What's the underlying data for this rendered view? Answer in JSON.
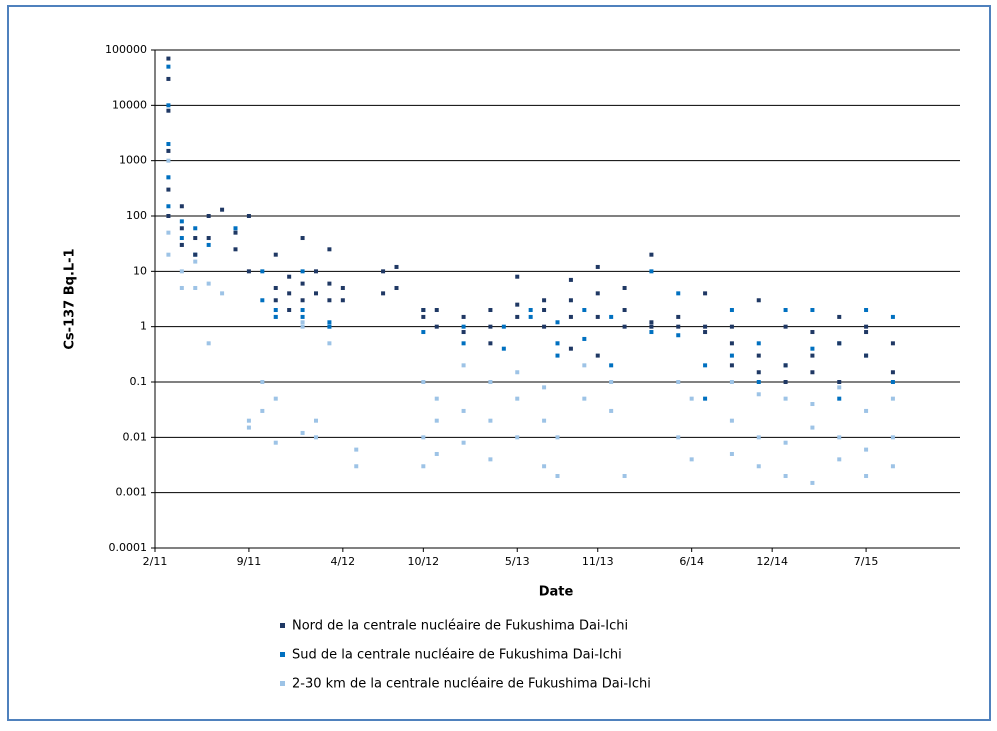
{
  "chart_data": {
    "type": "scatter",
    "xlabel": "Date",
    "ylabel": "Cs-137 Bq.L-1",
    "yscale": "log",
    "grid": true,
    "legend": "bottom",
    "xlim": [
      "2011-02",
      "2016-02"
    ],
    "xticks": [
      {
        "value": "2011-02",
        "label": "2/11"
      },
      {
        "value": "2011-09",
        "label": "9/11"
      },
      {
        "value": "2012-04",
        "label": "4/12"
      },
      {
        "value": "2012-10",
        "label": "10/12"
      },
      {
        "value": "2013-05",
        "label": "5/13"
      },
      {
        "value": "2013-11",
        "label": "11/13"
      },
      {
        "value": "2014-06",
        "label": "6/14"
      },
      {
        "value": "2014-12",
        "label": "12/14"
      },
      {
        "value": "2015-07",
        "label": "7/15"
      }
    ],
    "ylim": [
      0.0001,
      100000
    ],
    "yticks": [
      0.0001,
      0.001,
      0.01,
      0.1,
      1,
      10,
      100,
      1000,
      10000,
      100000
    ],
    "series": [
      {
        "name": "Nord de la centrale nucléaire de Fukushima Dai-Ichi",
        "color": "#1f3864",
        "x": [
          "2011-03",
          "2011-03",
          "2011-03",
          "2011-03",
          "2011-03",
          "2011-03",
          "2011-04",
          "2011-04",
          "2011-04",
          "2011-05",
          "2011-05",
          "2011-06",
          "2011-06",
          "2011-07",
          "2011-08",
          "2011-08",
          "2011-09",
          "2011-09",
          "2011-11",
          "2011-11",
          "2011-11",
          "2011-12",
          "2011-12",
          "2011-12",
          "2012-01",
          "2012-01",
          "2012-01",
          "2012-02",
          "2012-02",
          "2012-03",
          "2012-03",
          "2012-03",
          "2012-04",
          "2012-04",
          "2012-07",
          "2012-07",
          "2012-08",
          "2012-08",
          "2012-10",
          "2012-10",
          "2012-11",
          "2012-11",
          "2013-01",
          "2013-01",
          "2013-03",
          "2013-03",
          "2013-03",
          "2013-05",
          "2013-05",
          "2013-05",
          "2013-07",
          "2013-07",
          "2013-07",
          "2013-09",
          "2013-09",
          "2013-09",
          "2013-09",
          "2013-11",
          "2013-11",
          "2013-11",
          "2013-11",
          "2014-01",
          "2014-01",
          "2014-01",
          "2014-03",
          "2014-03",
          "2014-03",
          "2014-05",
          "2014-05",
          "2014-07",
          "2014-07",
          "2014-07",
          "2014-09",
          "2014-09",
          "2014-09",
          "2014-11",
          "2014-11",
          "2014-11",
          "2015-01",
          "2015-01",
          "2015-01",
          "2015-03",
          "2015-03",
          "2015-03",
          "2015-05",
          "2015-05",
          "2015-05",
          "2015-07",
          "2015-07",
          "2015-07",
          "2015-09",
          "2015-09"
        ],
        "values": [
          70000,
          30000,
          8000,
          1500,
          300,
          100,
          150,
          60,
          30,
          40,
          20,
          40,
          100,
          130,
          50,
          25,
          10,
          100,
          5,
          20,
          3,
          8,
          4,
          2,
          6,
          3,
          40,
          4,
          10,
          25,
          3,
          6,
          5,
          3,
          10,
          4,
          12,
          5,
          2,
          1.5,
          1,
          2,
          1.5,
          0.8,
          2,
          1,
          0.5,
          2.5,
          8,
          1.5,
          3,
          2,
          1,
          3,
          7,
          1.5,
          0.4,
          4,
          12,
          1.5,
          0.3,
          2,
          5,
          1,
          20,
          1,
          1.2,
          1,
          1.5,
          1,
          0.8,
          4,
          0.5,
          0.2,
          1,
          0.3,
          0.15,
          3,
          0.2,
          0.1,
          1,
          0.15,
          0.3,
          0.8,
          0.5,
          0.1,
          1.5,
          0.3,
          1,
          0.8,
          0.5,
          0.15
        ]
      },
      {
        "name": "Sud de la centrale nucléaire de Fukushima Dai-Ichi",
        "color": "#0070c0",
        "x": [
          "2011-03",
          "2011-03",
          "2011-03",
          "2011-03",
          "2011-03",
          "2011-04",
          "2011-04",
          "2011-05",
          "2011-05",
          "2011-06",
          "2011-08",
          "2011-10",
          "2011-10",
          "2011-11",
          "2011-11",
          "2012-01",
          "2012-01",
          "2012-01",
          "2012-03",
          "2012-03",
          "2012-10",
          "2012-10",
          "2013-01",
          "2013-01",
          "2013-04",
          "2013-04",
          "2013-06",
          "2013-06",
          "2013-08",
          "2013-08",
          "2013-08",
          "2013-10",
          "2013-10",
          "2013-12",
          "2013-12",
          "2014-03",
          "2014-03",
          "2014-05",
          "2014-05",
          "2014-07",
          "2014-07",
          "2014-09",
          "2014-09",
          "2014-11",
          "2014-11",
          "2015-01",
          "2015-01",
          "2015-03",
          "2015-03",
          "2015-05",
          "2015-05",
          "2015-07",
          "2015-07",
          "2015-09",
          "2015-09"
        ],
        "values": [
          50000,
          10000,
          2000,
          500,
          150,
          80,
          40,
          20,
          60,
          30,
          60,
          3,
          10,
          2,
          1.5,
          1.5,
          2,
          10,
          1.2,
          1,
          0.8,
          2,
          0.5,
          1,
          1,
          0.4,
          1.5,
          2,
          0.5,
          1.2,
          0.3,
          2,
          0.6,
          1.5,
          0.2,
          10,
          0.8,
          4,
          0.7,
          0.05,
          0.2,
          2,
          0.3,
          0.5,
          0.1,
          2,
          0.2,
          2,
          0.4,
          0.5,
          0.05,
          2,
          0.3,
          1.5,
          0.1
        ]
      },
      {
        "name": "2-30 km de la centrale nucléaire de Fukushima Dai-Ichi",
        "color": "#9dc3e6",
        "x": [
          "2011-03",
          "2011-03",
          "2011-03",
          "2011-03",
          "2011-03",
          "2011-04",
          "2011-04",
          "2011-04",
          "2011-05",
          "2011-05",
          "2011-06",
          "2011-06",
          "2011-07",
          "2011-09",
          "2011-09",
          "2011-10",
          "2011-10",
          "2011-11",
          "2011-11",
          "2011-11",
          "2012-01",
          "2012-01",
          "2012-01",
          "2012-02",
          "2012-02",
          "2012-03",
          "2012-03",
          "2012-05",
          "2012-05",
          "2012-10",
          "2012-10",
          "2012-10",
          "2012-11",
          "2012-11",
          "2012-11",
          "2013-01",
          "2013-01",
          "2013-01",
          "2013-03",
          "2013-03",
          "2013-03",
          "2013-05",
          "2013-05",
          "2013-05",
          "2013-07",
          "2013-07",
          "2013-07",
          "2013-08",
          "2013-08",
          "2013-08",
          "2013-10",
          "2013-10",
          "2013-12",
          "2013-12",
          "2014-01",
          "2014-05",
          "2014-05",
          "2014-06",
          "2014-06",
          "2014-09",
          "2014-09",
          "2014-09",
          "2014-11",
          "2014-11",
          "2014-11",
          "2015-01",
          "2015-01",
          "2015-01",
          "2015-03",
          "2015-03",
          "2015-03",
          "2015-05",
          "2015-05",
          "2015-05",
          "2015-07",
          "2015-07",
          "2015-07",
          "2015-09",
          "2015-09",
          "2015-09"
        ],
        "values": [
          1000,
          500,
          100,
          50,
          20,
          30,
          10,
          5,
          15,
          5,
          6,
          0.5,
          4,
          0.015,
          0.02,
          0.03,
          0.1,
          1.5,
          0.008,
          0.05,
          1,
          1.2,
          0.012,
          0.01,
          0.02,
          1,
          0.5,
          0.003,
          0.006,
          0.1,
          0.01,
          0.003,
          0.05,
          0.02,
          0.005,
          0.2,
          0.03,
          0.008,
          0.1,
          0.02,
          0.004,
          0.15,
          0.05,
          0.01,
          0.08,
          0.02,
          0.003,
          0.5,
          0.01,
          0.002,
          0.2,
          0.05,
          0.1,
          0.03,
          0.002,
          0.1,
          0.01,
          0.05,
          0.004,
          0.1,
          0.02,
          0.005,
          0.06,
          0.01,
          0.003,
          0.05,
          0.008,
          0.002,
          0.04,
          0.015,
          0.0015,
          0.08,
          0.01,
          0.004,
          0.03,
          0.006,
          0.002,
          0.05,
          0.01,
          0.003
        ]
      }
    ]
  }
}
